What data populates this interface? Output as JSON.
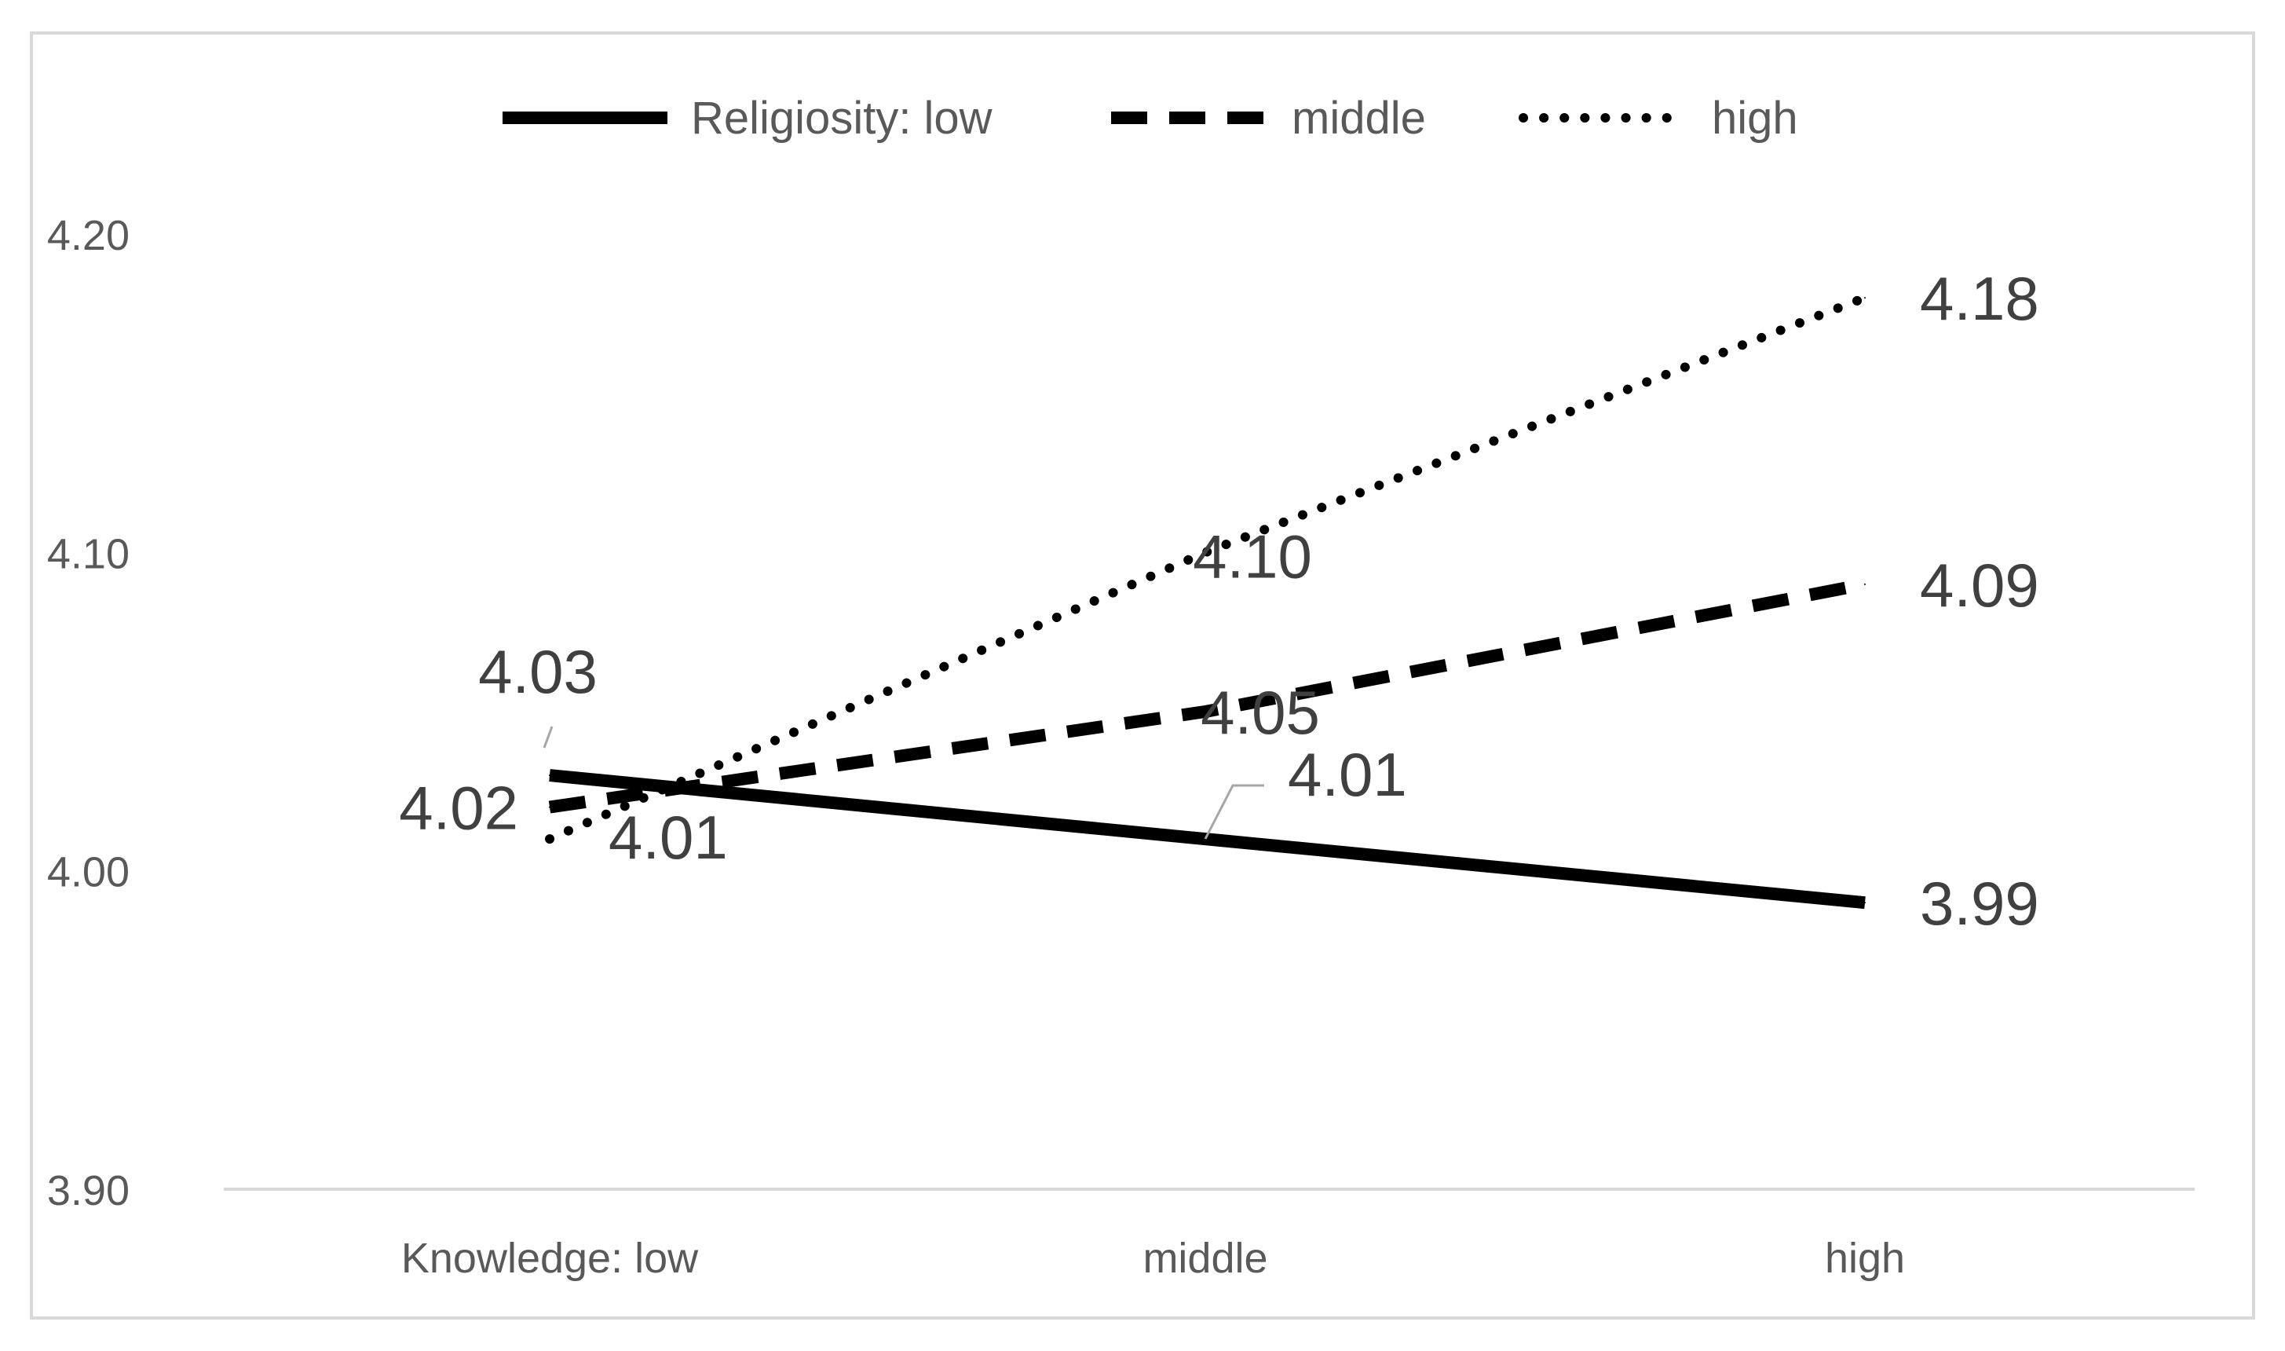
{
  "chart_data": {
    "type": "line",
    "categories": [
      "Knowledge: low",
      "middle",
      "high"
    ],
    "series": [
      {
        "name": "Religiosity: low",
        "dash": "solid",
        "values": [
          4.03,
          4.01,
          3.99
        ]
      },
      {
        "name": "middle",
        "dash": "dashed",
        "values": [
          4.02,
          4.05,
          4.09
        ]
      },
      {
        "name": "high",
        "dash": "dotted",
        "values": [
          4.01,
          4.1,
          4.18
        ]
      }
    ],
    "y_ticks": [
      "3.90",
      "4.00",
      "4.10",
      "4.20"
    ],
    "ylim": [
      3.9,
      4.2
    ],
    "data_labels": [
      {
        "series": 0,
        "point": 0,
        "text": "4.03"
      },
      {
        "series": 0,
        "point": 1,
        "text": "4.01"
      },
      {
        "series": 0,
        "point": 2,
        "text": "3.99"
      },
      {
        "series": 1,
        "point": 0,
        "text": "4.02"
      },
      {
        "series": 1,
        "point": 1,
        "text": "4.05"
      },
      {
        "series": 1,
        "point": 2,
        "text": "4.09"
      },
      {
        "series": 2,
        "point": 0,
        "text": "4.01"
      },
      {
        "series": 2,
        "point": 1,
        "text": "4.10"
      },
      {
        "series": 2,
        "point": 2,
        "text": "4.18"
      }
    ],
    "legend_position": "top",
    "grid": false,
    "line_color": "#000000",
    "text_color": "#595959",
    "axis_color": "#d9d9d9"
  }
}
